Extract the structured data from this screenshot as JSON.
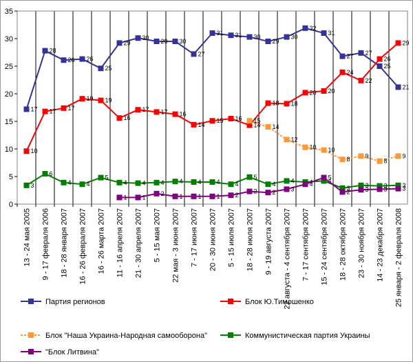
{
  "chart_data": {
    "type": "line",
    "categories": [
      "13 - 24 мая 2005",
      "9 - 17 февраля 2006",
      "18 - 28 января 2007",
      "16 - 26 февраля 2007",
      "16 - 26 марта 2007",
      "11 - 16 апреля 2007",
      "21 - 30 апреля 2007",
      "5 - 15 мая 2007",
      "22 мая - 3 июня 2007",
      "7 - 17 июня 2007",
      "20 - 30 июня 2007",
      "5 - 15 июля 2007",
      "18 - 28 июля 2007",
      "9 - 19 августа 2007",
      "22 августа - 4 сентября 2007",
      "7 - 17 сентября 2007",
      "15 - 24 сентября 2007",
      "18 - 28 октября 2007",
      "23 - 30 ноября 2007",
      "14 - 23 декабря 2007",
      "25 января - 2 февраля 2008"
    ],
    "series": [
      {
        "name": "Партия регионов",
        "color": "#333399",
        "dashed": false,
        "values": [
          17.2,
          27.8,
          26.1,
          26.3,
          24.6,
          29.2,
          30.1,
          29.5,
          29.5,
          27.2,
          31.0,
          30.6,
          30.3,
          29.5,
          30.3,
          31.9,
          31.0,
          26.8,
          27.4,
          25.0,
          21.2
        ],
        "value_labels": [
          "17",
          "28",
          "26",
          "26",
          "25",
          "29",
          "30",
          "29",
          "30",
          "27",
          "31",
          "31",
          "30",
          "29",
          "30",
          "32",
          "31",
          "27",
          "27",
          "25",
          "21"
        ]
      },
      {
        "name": "Блок Ю.Тимошенко",
        "color": "#ff0000",
        "dashed": false,
        "values": [
          9.6,
          16.8,
          17.4,
          19.1,
          18.8,
          15.6,
          17.1,
          16.7,
          16.3,
          14.4,
          15.1,
          15.5,
          14.3,
          18.3,
          18.2,
          20.2,
          20.5,
          23.9,
          22.4,
          26.3,
          29.2
        ],
        "value_labels": [
          "10",
          "17",
          "17",
          "19",
          "19",
          "16",
          "17",
          "17",
          "16",
          "14",
          "15",
          "16",
          "14",
          "18",
          "18",
          "20",
          "20",
          "24",
          "22",
          "26",
          "29"
        ]
      },
      {
        "name": "Блок \"Наша Украина-Народная самооборона\"",
        "color": "#ff9933",
        "dashed": true,
        "values": [
          null,
          null,
          null,
          null,
          null,
          null,
          null,
          null,
          null,
          null,
          null,
          null,
          15.1,
          14.0,
          11.7,
          10.3,
          9.8,
          8.1,
          8.7,
          7.8,
          8.7
        ],
        "value_labels": [
          null,
          null,
          null,
          null,
          null,
          null,
          null,
          null,
          null,
          null,
          null,
          null,
          "15",
          "14",
          "12",
          "10",
          "10",
          "8",
          "9",
          "8",
          "9"
        ]
      },
      {
        "name": "Коммунистическая партия Украины",
        "color": "#008000",
        "dashed": false,
        "values": [
          3.4,
          5.5,
          3.9,
          3.6,
          4.8,
          3.9,
          3.8,
          3.9,
          4.1,
          4.0,
          4.0,
          3.6,
          4.9,
          3.6,
          4.2,
          4.0,
          4.2,
          2.9,
          3.4,
          3.3,
          3.4
        ],
        "value_labels": [
          "3",
          "6",
          "4",
          "4",
          "5",
          "4",
          "4",
          "4",
          "4",
          "4",
          "4",
          "4",
          "5",
          "4",
          "4",
          "4",
          "4",
          "3",
          "3",
          "3",
          "3"
        ]
      },
      {
        "name": "\"Блок Литвина\"",
        "color": "#800080",
        "dashed": false,
        "values": [
          null,
          null,
          null,
          null,
          null,
          1.2,
          1.2,
          1.9,
          1.4,
          1.4,
          1.4,
          1.6,
          2.3,
          2.1,
          2.7,
          3.6,
          4.8,
          2.2,
          2.6,
          2.7,
          2.8
        ],
        "value_labels": [
          null,
          null,
          null,
          null,
          null,
          "1",
          "1",
          "2",
          "1",
          "1",
          "1",
          "2",
          "2",
          "2",
          "3",
          "4",
          "5",
          "2",
          "3",
          "3",
          "3"
        ]
      }
    ],
    "ylim": [
      0,
      35
    ],
    "yticks": [
      0,
      5,
      10,
      15,
      20,
      25,
      30,
      35
    ]
  }
}
